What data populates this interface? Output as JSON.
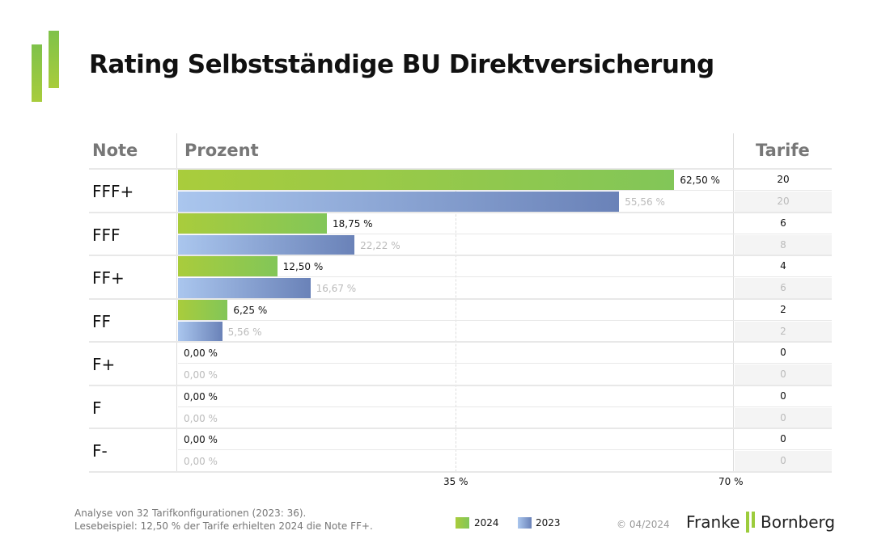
{
  "title": "Rating Selbstständige BU Direktversicherung",
  "header": {
    "note": "Note",
    "prozent": "Prozent",
    "tarife": "Tarife"
  },
  "chart_data": {
    "type": "bar",
    "orientation": "horizontal",
    "xlim": [
      0,
      70
    ],
    "categories": [
      "FFF+",
      "FFF",
      "FF+",
      "FF",
      "F+",
      "F",
      "F-"
    ],
    "series": [
      {
        "name": "2024",
        "color": "#94c94a",
        "values": [
          62.5,
          18.75,
          12.5,
          6.25,
          0,
          0,
          0
        ],
        "labels": [
          "62,50 %",
          "18,75 %",
          "12,50 %",
          "6,25 %",
          "0,00 %",
          "0,00 %",
          "0,00 %"
        ],
        "tarife": [
          "20",
          "6",
          "4",
          "2",
          "0",
          "0",
          "0"
        ]
      },
      {
        "name": "2023",
        "color": "#8aa3d6",
        "values": [
          55.56,
          22.22,
          16.67,
          5.56,
          0,
          0,
          0
        ],
        "labels": [
          "55,56 %",
          "22,22 %",
          "16,67 %",
          "5,56 %",
          "0,00 %",
          "0,00 %",
          "0,00 %"
        ],
        "tarife": [
          "20",
          "8",
          "6",
          "2",
          "0",
          "0",
          "0"
        ]
      }
    ],
    "x_ticks": [
      "35 %",
      "70 %"
    ],
    "x_tick_values": [
      35,
      70
    ],
    "legend": {
      "items": [
        "2024",
        "2023"
      ],
      "placement": "bottom"
    }
  },
  "footer": {
    "line1": "Analyse von 32 Tarifkonfigurationen (2023: 36).",
    "line2": "Lesebeispiel: 12,50 % der Tarife erhielten 2024 die Note FF+.",
    "copyright": "© 04/2024",
    "brand_left": "Franke",
    "brand_right": "Bornberg"
  }
}
